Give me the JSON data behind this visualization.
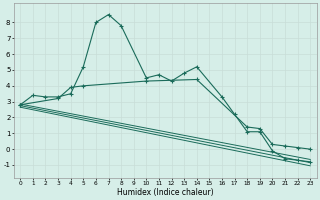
{
  "xlabel": "Humidex (Indice chaleur)",
  "background_color": "#d6eee8",
  "grid_color": "#c8ddd8",
  "line_color": "#1a6b5a",
  "xlim": [
    -0.5,
    23.5
  ],
  "ylim": [
    -1.8,
    9.2
  ],
  "yticks": [
    -1,
    0,
    1,
    2,
    3,
    4,
    5,
    6,
    7,
    8
  ],
  "xticks": [
    0,
    1,
    2,
    3,
    4,
    5,
    6,
    7,
    8,
    9,
    10,
    11,
    12,
    13,
    14,
    15,
    16,
    17,
    18,
    19,
    20,
    21,
    22,
    23
  ],
  "curve1_x": [
    0,
    1,
    2,
    3,
    4,
    5,
    6,
    7,
    8,
    10,
    11,
    12,
    13,
    14,
    16,
    17,
    18,
    19,
    20,
    21,
    22,
    23
  ],
  "curve1_y": [
    2.8,
    3.4,
    3.3,
    3.3,
    3.5,
    5.2,
    8.0,
    8.5,
    7.8,
    4.5,
    4.7,
    4.3,
    4.8,
    5.2,
    3.3,
    2.2,
    1.1,
    1.1,
    -0.1,
    -0.6,
    -0.7,
    -0.8
  ],
  "curve2_x": [
    0,
    3,
    4,
    5,
    10,
    14,
    18,
    19,
    20,
    21,
    22,
    23
  ],
  "curve2_y": [
    2.8,
    3.2,
    3.9,
    4.0,
    4.3,
    4.4,
    1.4,
    1.3,
    0.3,
    0.2,
    0.1,
    0.0
  ],
  "line1_x": [
    0,
    23
  ],
  "line1_y": [
    2.85,
    -0.65
  ],
  "line2_x": [
    0,
    23
  ],
  "line2_y": [
    2.75,
    -0.85
  ],
  "line3_x": [
    0,
    23
  ],
  "line3_y": [
    2.65,
    -1.05
  ]
}
